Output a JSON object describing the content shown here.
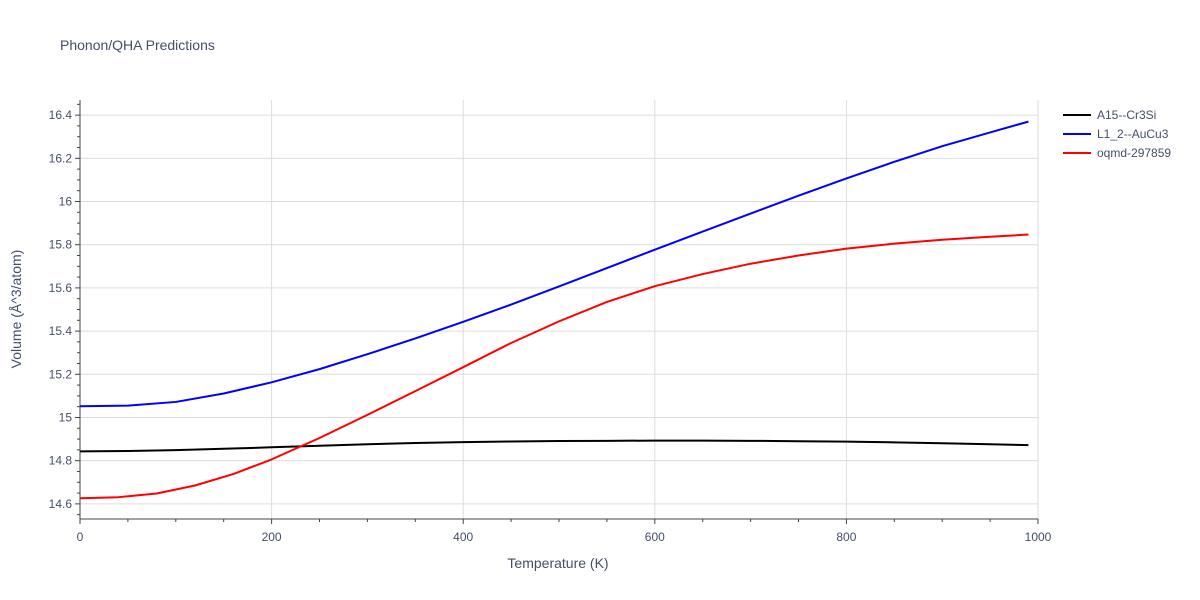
{
  "chart_data": {
    "type": "line",
    "title": "Phonon/QHA Predictions",
    "xlabel": "Temperature (K)",
    "ylabel": "Volume (Å^3/atom)",
    "xlim": [
      0,
      1000
    ],
    "ylim": [
      14.53,
      16.47
    ],
    "x_ticks": [
      0,
      200,
      400,
      600,
      800,
      1000
    ],
    "x_tick_labels": [
      "0",
      "200",
      "400",
      "600",
      "800",
      "1000"
    ],
    "y_ticks": [
      14.6,
      14.8,
      15,
      15.2,
      15.4,
      15.6,
      15.8,
      16,
      16.2,
      16.4
    ],
    "y_tick_labels": [
      "14.6",
      "14.8",
      "15",
      "15.2",
      "15.4",
      "15.6",
      "15.8",
      "16",
      "16.2",
      "16.4"
    ],
    "grid": true,
    "legend_position": "top-right",
    "series": [
      {
        "name": "A15--Cr3Si",
        "color": "#000000",
        "x": [
          0,
          50,
          100,
          150,
          200,
          250,
          300,
          350,
          400,
          450,
          500,
          550,
          600,
          650,
          700,
          750,
          800,
          850,
          900,
          950,
          990
        ],
        "y": [
          14.843,
          14.845,
          14.849,
          14.855,
          14.862,
          14.869,
          14.876,
          14.882,
          14.886,
          14.889,
          14.891,
          14.892,
          14.893,
          14.893,
          14.892,
          14.89,
          14.888,
          14.885,
          14.881,
          14.876,
          14.872
        ]
      },
      {
        "name": "L1_2--AuCu3",
        "color": "#0000ff",
        "x": [
          0,
          50,
          100,
          150,
          200,
          250,
          300,
          350,
          400,
          450,
          500,
          550,
          600,
          650,
          700,
          750,
          800,
          850,
          900,
          950,
          990
        ],
        "y": [
          15.052,
          15.055,
          15.072,
          15.111,
          15.163,
          15.224,
          15.293,
          15.366,
          15.443,
          15.523,
          15.607,
          15.692,
          15.777,
          15.861,
          15.944,
          16.027,
          16.107,
          16.184,
          16.256,
          16.32,
          16.37
        ]
      },
      {
        "name": "oqmd-297859",
        "color": "#ff0000",
        "x": [
          0,
          40,
          80,
          120,
          160,
          200,
          250,
          300,
          350,
          400,
          450,
          500,
          550,
          600,
          650,
          700,
          750,
          800,
          850,
          900,
          950,
          990
        ],
        "y": [
          14.626,
          14.631,
          14.648,
          14.685,
          14.738,
          14.806,
          14.905,
          15.012,
          15.122,
          15.233,
          15.345,
          15.445,
          15.535,
          15.608,
          15.664,
          15.712,
          15.75,
          15.782,
          15.805,
          15.823,
          15.837,
          15.847
        ]
      }
    ]
  }
}
